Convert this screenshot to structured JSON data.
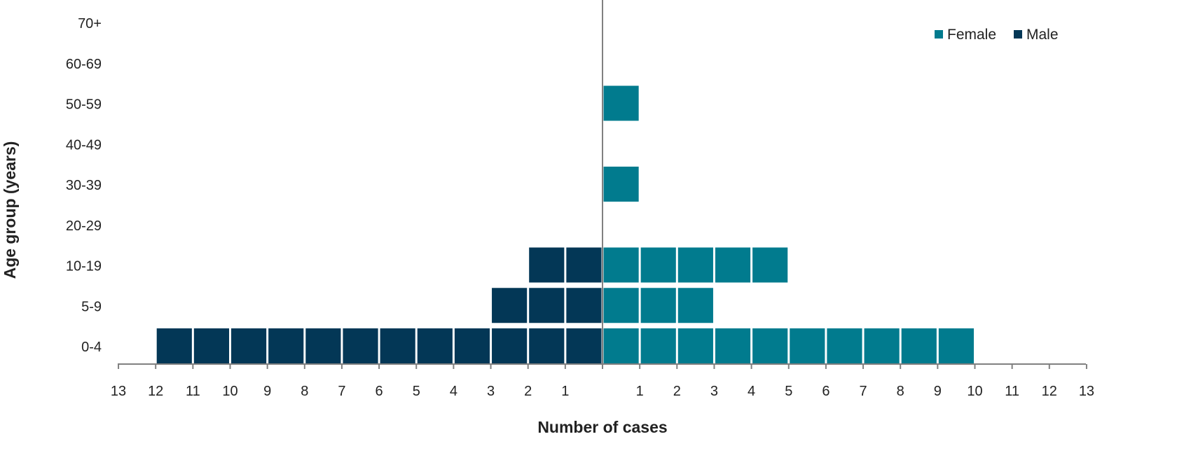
{
  "chart_data": {
    "type": "bar",
    "orientation": "horizontal-pyramid",
    "title": "",
    "xlabel": "Number of cases",
    "ylabel": "Age group (years)",
    "categories": [
      "0-4",
      "5-9",
      "10-19",
      "20-29",
      "30-39",
      "40-49",
      "50-59",
      "60-69",
      "70+"
    ],
    "series": [
      {
        "name": "Female",
        "side": "right",
        "color": "#017b8e",
        "values": [
          10,
          3,
          5,
          0,
          1,
          0,
          1,
          0,
          0
        ]
      },
      {
        "name": "Male",
        "side": "left",
        "color": "#033756",
        "values": [
          12,
          3,
          2,
          0,
          0,
          0,
          0,
          0,
          0
        ]
      }
    ],
    "xlim": [
      -13,
      13
    ],
    "x_tick_labels_left": [
      "13",
      "12",
      "11",
      "10",
      "9",
      "8",
      "7",
      "6",
      "5",
      "4",
      "3",
      "2",
      "1"
    ],
    "x_tick_labels_right": [
      "1",
      "2",
      "3",
      "4",
      "5",
      "6",
      "7",
      "8",
      "9",
      "10",
      "11",
      "12",
      "13"
    ],
    "grid": false,
    "legend_position": "top-right",
    "axis_color": "#808080"
  }
}
